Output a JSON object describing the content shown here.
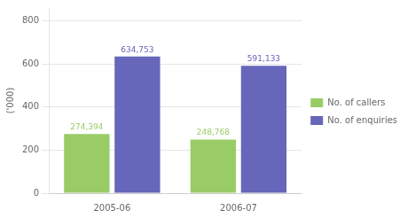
{
  "chart_data": {
    "type": "bar",
    "categories": [
      "2005-06",
      "2006-07"
    ],
    "ylabel": "('000)",
    "series": [
      {
        "name": "No. of callers",
        "color": "#99cc66",
        "values": [
          274.394,
          248.768
        ],
        "value_labels": [
          "274,394",
          "248,768"
        ]
      },
      {
        "name": "No. of enquiries",
        "color": "#6666bb",
        "values": [
          634.753,
          591.133
        ],
        "value_labels": [
          "634,753",
          "591,133"
        ]
      }
    ],
    "ylim": [
      0,
      860
    ],
    "yticks": [
      0,
      200,
      400,
      600,
      800
    ],
    "grid": true,
    "legend": "right",
    "data_labels": true
  }
}
